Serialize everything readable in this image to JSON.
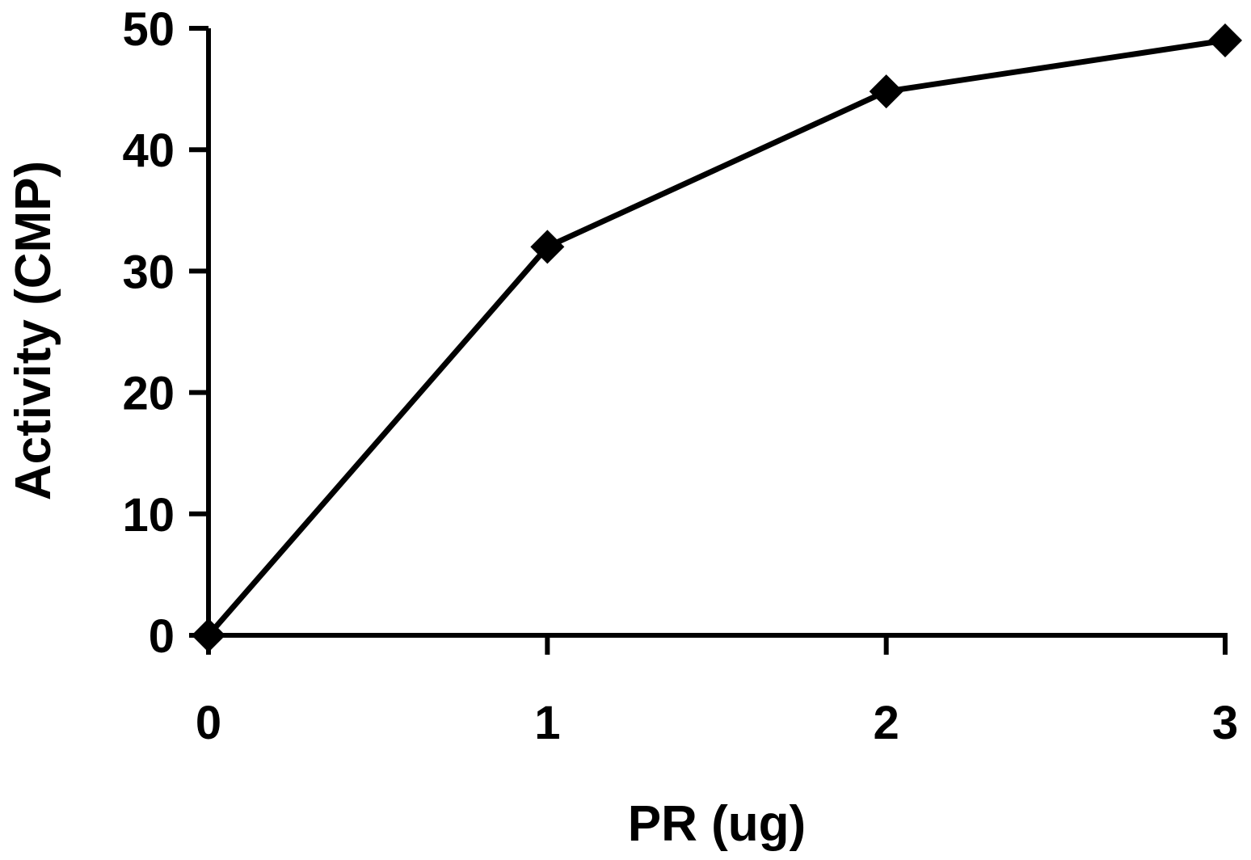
{
  "chart_data": {
    "type": "line",
    "title": "",
    "xlabel": "PR (ug)",
    "ylabel": "Activity (CMP)",
    "x": [
      0,
      1,
      2,
      3
    ],
    "xlim": [
      0,
      3
    ],
    "ylim": [
      0,
      50
    ],
    "xticks": [
      0,
      1,
      2,
      3
    ],
    "yticks": [
      0,
      10,
      20,
      30,
      40,
      50
    ],
    "grid": false,
    "legend": "none",
    "marker": "diamond",
    "series": [
      {
        "values": [
          0,
          32,
          44.8,
          49
        ],
        "color": "#000000"
      }
    ]
  }
}
